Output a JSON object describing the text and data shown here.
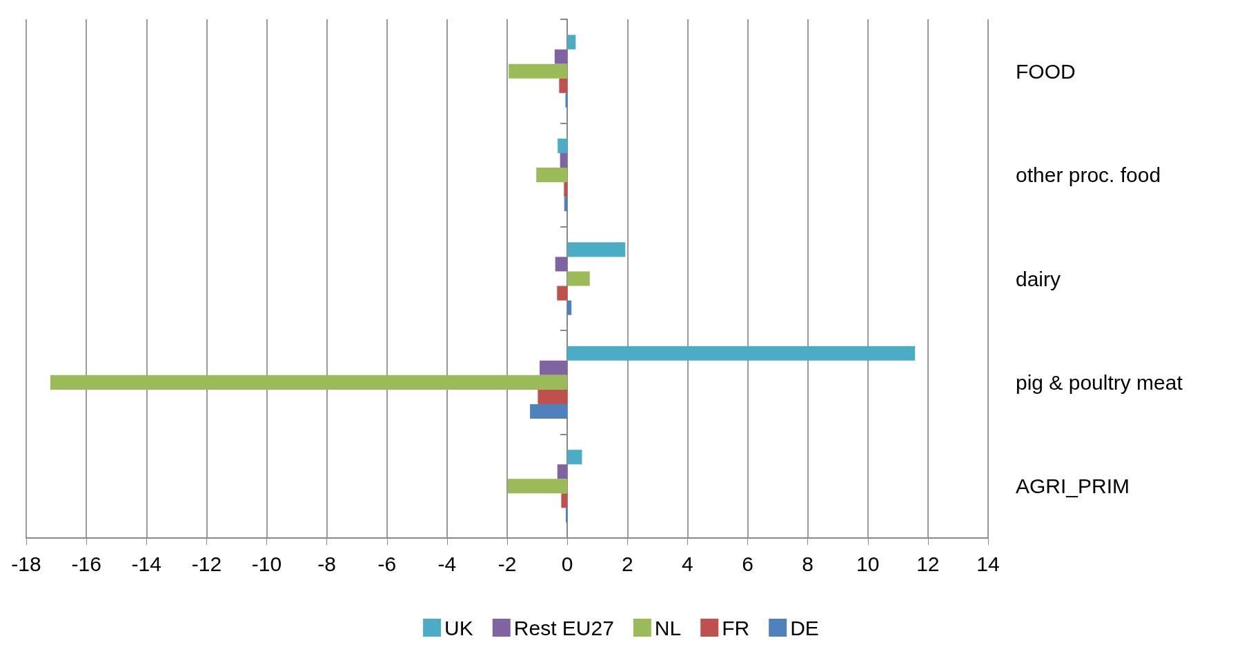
{
  "chart_data": {
    "type": "bar",
    "orientation": "horizontal",
    "categories": [
      "FOOD",
      "other proc. food",
      "dairy",
      "pig & poultry meat",
      "AGRI_PRIM"
    ],
    "series": [
      {
        "name": "UK",
        "color": "#4bacc6",
        "values": [
          0.28,
          -0.32,
          1.93,
          11.57,
          0.49
        ]
      },
      {
        "name": "Rest EU27",
        "color": "#8064a2",
        "values": [
          -0.42,
          -0.24,
          -0.4,
          -0.92,
          -0.33
        ]
      },
      {
        "name": "NL",
        "color": "#9bbb59",
        "values": [
          -1.95,
          -1.03,
          0.75,
          -17.2,
          -1.98
        ]
      },
      {
        "name": "FR",
        "color": "#c0504d",
        "values": [
          -0.27,
          -0.11,
          -0.34,
          -0.98,
          -0.2
        ]
      },
      {
        "name": "DE",
        "color": "#4f81bd",
        "values": [
          -0.06,
          -0.1,
          0.14,
          -1.24,
          -0.05
        ]
      }
    ],
    "xlim": [
      -18,
      14
    ],
    "xticks": [
      -18,
      -16,
      -14,
      -12,
      -10,
      -8,
      -6,
      -4,
      -2,
      0,
      2,
      4,
      6,
      8,
      10,
      12,
      14
    ],
    "grid": "x",
    "legend": "bottom"
  }
}
